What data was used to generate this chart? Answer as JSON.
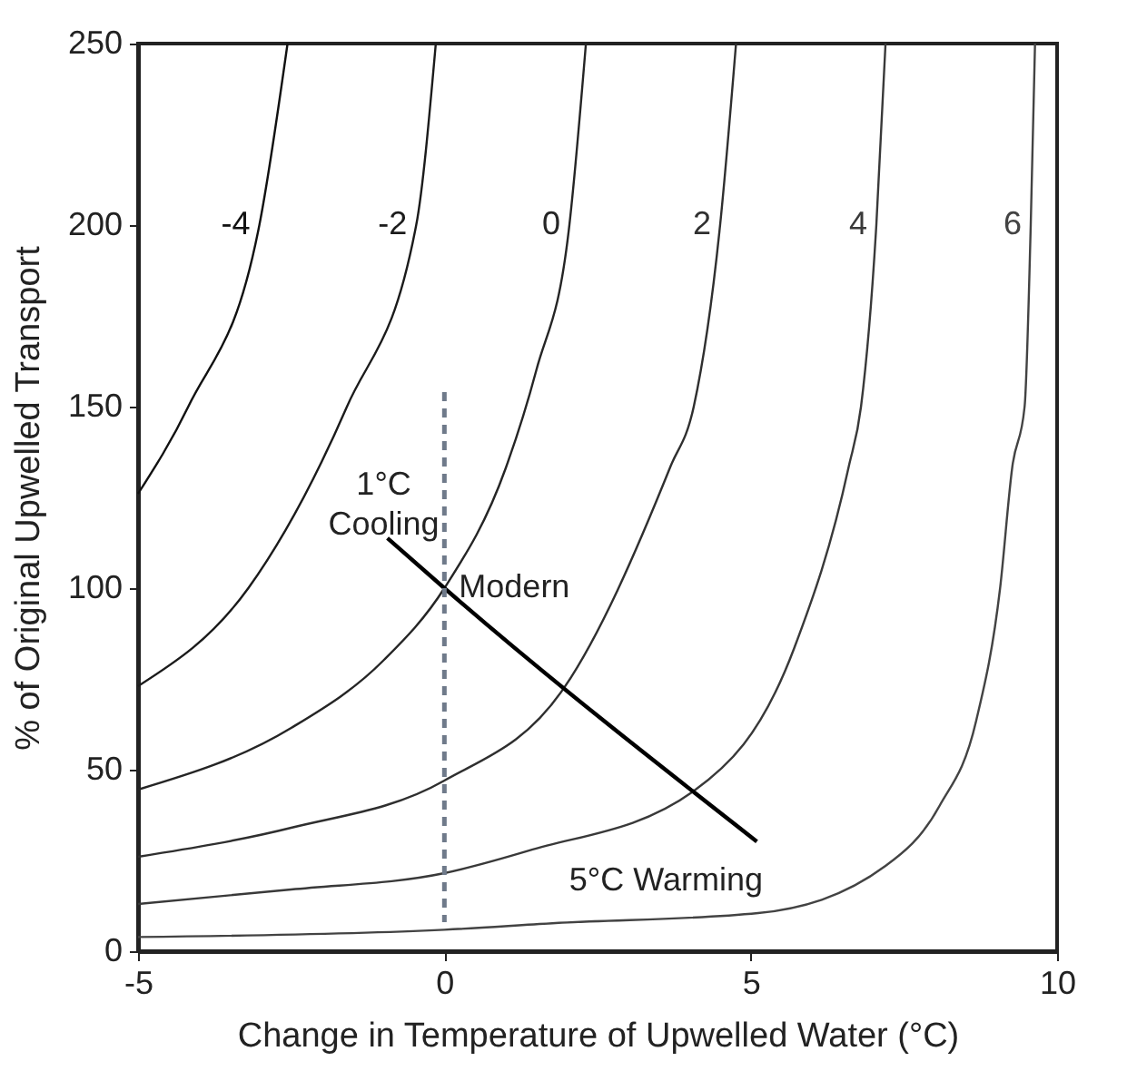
{
  "chart_data": {
    "type": "line",
    "xlabel": "Change in Temperature of Upwelled Water (°C)",
    "ylabel": "% of Original Upwelled Transport",
    "xlim": [
      -5,
      10
    ],
    "xticks": [
      -5,
      0,
      5,
      10
    ],
    "ylim": [
      0,
      250
    ],
    "yticks": [
      0,
      50,
      100,
      150,
      200,
      250
    ],
    "grid": false,
    "legend": false,
    "line_style": "solid",
    "series": [
      {
        "name": "-4",
        "color": "#111111",
        "x": [
          -5,
          -4.18,
          -3.02,
          -2.56
        ],
        "values": [
          126,
          150,
          200,
          250
        ]
      },
      {
        "name": "-2",
        "color": "#1b1b1b",
        "x": [
          -5,
          -3.2,
          -1.59,
          -0.46,
          -0.14
        ],
        "values": [
          73,
          100,
          150,
          200,
          250
        ]
      },
      {
        "name": "0",
        "color": "#252525",
        "x": [
          -5,
          -2.5,
          -1,
          0,
          1,
          1.5,
          2.04,
          2.31
        ],
        "values": [
          44.5,
          61.5,
          80,
          100,
          133,
          160,
          200,
          250
        ]
      },
      {
        "name": "2",
        "color": "#2f2f2f",
        "x": [
          -5,
          -2.5,
          0,
          1.96,
          3.69,
          4.07,
          4.5,
          4.76
        ],
        "values": [
          26,
          34,
          47,
          72.7,
          133.5,
          150,
          200,
          250
        ]
      },
      {
        "name": "4",
        "color": "#393939",
        "x": [
          -5,
          -2.5,
          0,
          1.38,
          4.06,
          5.71,
          6.6,
          6.8,
          7.05,
          7.2
        ],
        "values": [
          13,
          17,
          21.5,
          27.7,
          44,
          83.5,
          133.5,
          150,
          200,
          250
        ]
      },
      {
        "name": "6",
        "color": "#434343",
        "x": [
          -5,
          0,
          1.76,
          5.12,
          7.2,
          8.08,
          8.68,
          9.07,
          9.27,
          9.47,
          9.57,
          9.64
        ],
        "values": [
          3.9,
          5.9,
          7.7,
          10.5,
          23.5,
          40,
          63.5,
          100,
          133.5,
          150,
          200,
          250
        ]
      },
      {
        "color": "#000000",
        "x": [
          -0.93,
          0,
          5.1
        ],
        "values": [
          113.8,
          100,
          30.2
        ]
      },
      {
        "color": "#6f7a8a",
        "line_style": "dashed",
        "x": [
          0,
          0
        ],
        "values": [
          154,
          8
        ]
      }
    ],
    "annotations": [
      {
        "text": "Modern",
        "x": 0,
        "y": 100
      },
      {
        "text": "1°C Cooling",
        "x": -0.93,
        "y": 113.8
      },
      {
        "text": "5°C Warming",
        "x": 5.1,
        "y": 30.2
      }
    ]
  }
}
